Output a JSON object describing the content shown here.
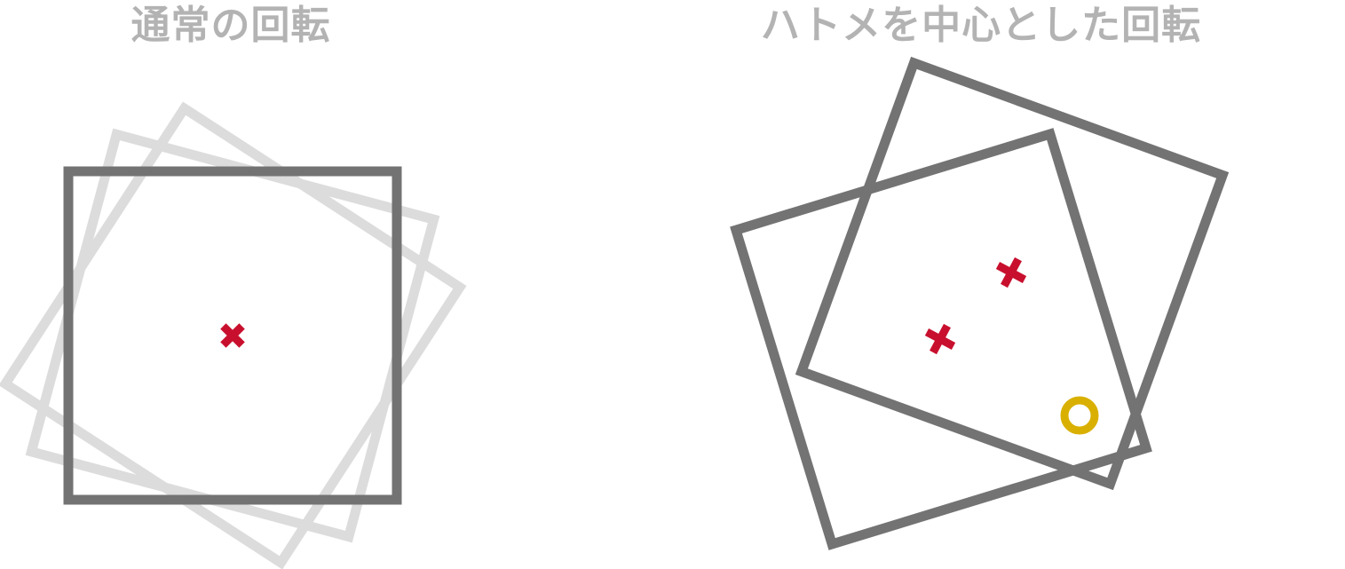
{
  "panels": {
    "left": {
      "title": "通常の回転"
    },
    "right": {
      "title": "ハトメを中心とした回転"
    }
  },
  "legend_icons": {
    "pivot_center_icon": "red-cross-icon",
    "grommet_icon": "yellow-ring-icon"
  },
  "colors": {
    "title": "#b3b3b3",
    "square_stroke": "#737373",
    "ghost_stroke": "#dcdcdc",
    "center_mark": "#c8102e",
    "grommet": "#d9b000"
  },
  "rotation_angles_deg": {
    "left_ghosts": [
      15,
      33
    ],
    "right_squares": [
      -17,
      20
    ]
  }
}
